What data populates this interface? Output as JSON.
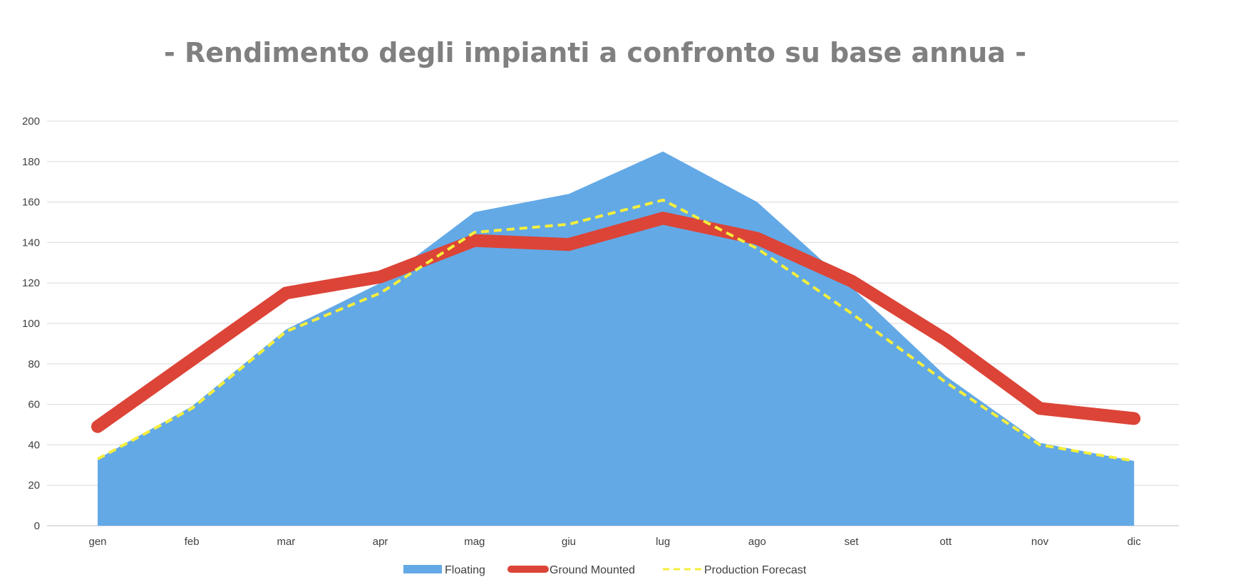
{
  "chart_data": {
    "type": "line",
    "title": "- Rendimento degli impianti a confronto su base annua -",
    "xlabel": "",
    "ylabel": "",
    "categories": [
      "gen",
      "feb",
      "mar",
      "apr",
      "mag",
      "giu",
      "lug",
      "ago",
      "set",
      "ott",
      "nov",
      "dic"
    ],
    "ylim": [
      0,
      200
    ],
    "yticks": [
      0,
      20,
      40,
      60,
      80,
      100,
      120,
      140,
      160,
      180,
      200
    ],
    "grid": true,
    "legend_position": "bottom",
    "series": [
      {
        "name": "Floating",
        "kind": "area",
        "color": "#63a9e6",
        "values": [
          33,
          59,
          97,
          120,
          155,
          164,
          185,
          160,
          118,
          74,
          41,
          32
        ]
      },
      {
        "name": "Ground Mounted",
        "kind": "line",
        "color": "#dc4437",
        "values": [
          49,
          82,
          115,
          123,
          141,
          139,
          152,
          142,
          121,
          92,
          58,
          53
        ]
      },
      {
        "name": "Production Forecast",
        "kind": "dashed-line",
        "color": "#f5ee3c",
        "values": [
          33,
          58,
          96,
          115,
          145,
          149,
          161,
          137,
          105,
          71,
          40,
          32
        ]
      }
    ]
  }
}
